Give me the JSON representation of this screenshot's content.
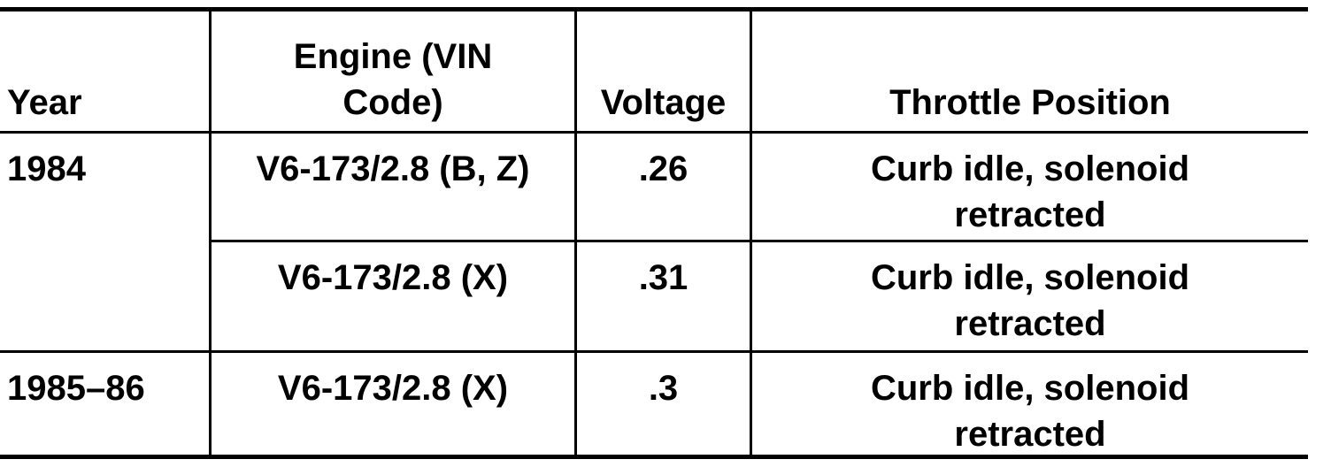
{
  "table": {
    "header": [
      "Year",
      "Engine (VIN Code)",
      "Voltage",
      "Throttle Position"
    ],
    "rows": [
      {
        "year": "1984",
        "engine": "V6-173/2.8 (B, Z)",
        "voltage": ".26",
        "throttle": "Curb idle, solenoid retracted"
      },
      {
        "engine": "V6-173/2.8 (X)",
        "voltage": ".31",
        "throttle": "Curb idle, solenoid retracted"
      },
      {
        "year": "1985–86",
        "engine": "V6-173/2.8 (X)",
        "voltage": ".3",
        "throttle": "Curb idle, solenoid retracted"
      }
    ]
  }
}
